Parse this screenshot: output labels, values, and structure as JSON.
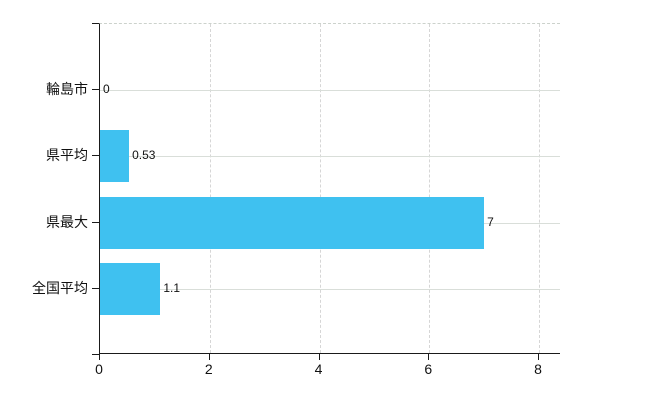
{
  "chart_data": {
    "type": "bar",
    "orientation": "horizontal",
    "title": "",
    "xlabel": "",
    "ylabel": "",
    "categories": [
      "輪島市",
      "県平均",
      "県最大",
      "全国平均"
    ],
    "values": [
      0,
      0.53,
      7,
      1.1
    ],
    "value_labels": [
      "0",
      "0.53",
      "7",
      "1.1"
    ],
    "x_ticks": [
      0,
      2,
      4,
      6,
      8
    ],
    "x_tick_labels": [
      "0",
      "2",
      "4",
      "6",
      "8"
    ],
    "xlim": [
      0,
      8.4
    ],
    "grid": true,
    "legend": "none",
    "bar_color": "#3fc1f0",
    "grid_color": "#d9ded9",
    "axis_color": "#1a1a1a",
    "background_color": "#ffffff"
  }
}
